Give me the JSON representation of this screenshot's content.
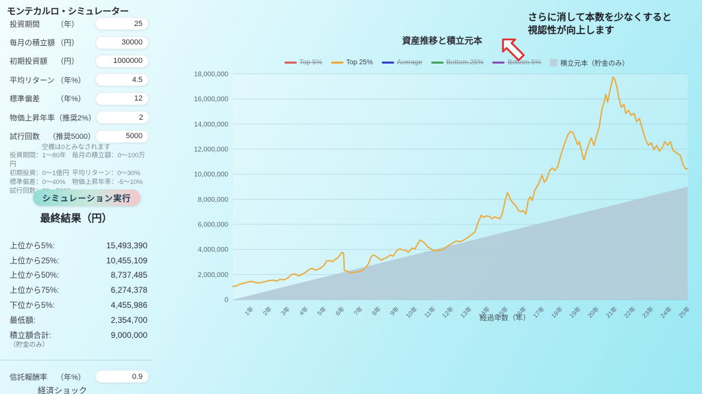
{
  "app": {
    "title": "モンテカルロ・シミュレーター"
  },
  "form": {
    "fields": [
      {
        "name": "投資期間",
        "unit": "（年）",
        "value": "25"
      },
      {
        "name": "毎月の積立額",
        "unit": "（円）",
        "value": "30000"
      },
      {
        "name": "初期投資額",
        "unit": "（円）",
        "value": "1000000"
      },
      {
        "name": "平均リターン",
        "unit": "（年%）",
        "value": "4.5"
      },
      {
        "name": "標準偏差",
        "unit": "（年%）",
        "value": "12"
      },
      {
        "name": "物価上昇年率",
        "unit": "（推奨2%）",
        "value": "2"
      },
      {
        "name": "試行回数",
        "unit": "（推奨5000）",
        "value": "5000"
      }
    ],
    "note": "空欄は0とみなされます",
    "hints": [
      [
        "投資期間：1～80年",
        "毎月の積立額：0～100万円"
      ],
      [
        "初期投資：0～1億円",
        "平均リターン：0～30%"
      ],
      [
        "標準偏差：0～40%",
        "物価上昇年率：-5～10%"
      ],
      [
        "試行回数：20～5000",
        ""
      ]
    ],
    "run_button": "シミュレーション実行"
  },
  "results": {
    "heading": "最終結果（円）",
    "rows": [
      {
        "label": "上位から5%:",
        "value": "15,493,390"
      },
      {
        "label": "上位から25%:",
        "value": "10,455,109"
      },
      {
        "label": "上位から50%:",
        "value": "8,737,485"
      },
      {
        "label": "上位から75%:",
        "value": "6,274,378"
      },
      {
        "label": "下位から5%:",
        "value": "4,455,986"
      },
      {
        "label": "最低額:",
        "value": "2,354,700"
      },
      {
        "label": "積立額合計:",
        "value": "9,000,000"
      }
    ],
    "note": "（貯金のみ）"
  },
  "fee": {
    "name": "信託報酬率",
    "unit": "（年%）",
    "value": "0.9"
  },
  "shock_label": "経済ショック",
  "annotation": {
    "line1": "さらに消して本数を少なくすると",
    "line2": "視認性が向上します",
    "arrow_color": "#e03131"
  },
  "chart_data": {
    "type": "line",
    "title": "資産推移と積立元本",
    "xlabel": "経過年数（年）",
    "ylim": [
      0,
      18000000
    ],
    "ytick_step": 2000000,
    "xticks": [
      "1年",
      "2年",
      "3年",
      "4年",
      "5年",
      "6年",
      "7年",
      "8年",
      "9年",
      "10年",
      "11年",
      "12年",
      "13年",
      "14年",
      "15年",
      "16年",
      "17年",
      "18年",
      "19年",
      "20年",
      "21年",
      "22年",
      "23年",
      "24年",
      "25年"
    ],
    "grid": "horizontal",
    "legend_position": "top",
    "legend": [
      {
        "label": "Top 5%",
        "color": "#d65f5f",
        "disabled": true,
        "swatch": "line"
      },
      {
        "label": "Top 25%",
        "color": "#ecaa3b",
        "disabled": false,
        "swatch": "line"
      },
      {
        "label": "Average",
        "color": "#3540cf",
        "disabled": true,
        "swatch": "line"
      },
      {
        "label": "Bottom 25%",
        "color": "#43a35c",
        "disabled": true,
        "swatch": "line"
      },
      {
        "label": "Bottom 5%",
        "color": "#8a4fb5",
        "disabled": true,
        "swatch": "line"
      },
      {
        "label": "積立元本（貯金のみ）",
        "color": "#bcd2de",
        "disabled": false,
        "swatch": "area"
      }
    ],
    "series": [
      {
        "name": "積立元本（貯金のみ）",
        "type": "area",
        "color": "#b2cbd7",
        "points_year_millions": [
          [
            0,
            0
          ],
          [
            25,
            9
          ]
        ]
      },
      {
        "name": "Top 25%",
        "type": "line",
        "color": "#ecaa3b",
        "points_year_millions": [
          [
            0,
            1.05
          ],
          [
            0.2,
            1.1
          ],
          [
            0.4,
            1.25
          ],
          [
            0.6,
            1.3
          ],
          [
            0.8,
            1.4
          ],
          [
            1.0,
            1.45
          ],
          [
            1.2,
            1.38
          ],
          [
            1.4,
            1.32
          ],
          [
            1.6,
            1.38
          ],
          [
            1.8,
            1.45
          ],
          [
            2.0,
            1.52
          ],
          [
            2.2,
            1.55
          ],
          [
            2.4,
            1.48
          ],
          [
            2.6,
            1.62
          ],
          [
            2.8,
            1.58
          ],
          [
            3.0,
            1.72
          ],
          [
            3.2,
            1.98
          ],
          [
            3.4,
            2.05
          ],
          [
            3.6,
            1.9
          ],
          [
            3.8,
            2.02
          ],
          [
            4.0,
            2.18
          ],
          [
            4.2,
            2.42
          ],
          [
            4.35,
            2.5
          ],
          [
            4.5,
            2.35
          ],
          [
            4.65,
            2.4
          ],
          [
            4.8,
            2.5
          ],
          [
            5.0,
            2.72
          ],
          [
            5.15,
            3.08
          ],
          [
            5.3,
            3.12
          ],
          [
            5.45,
            3.02
          ],
          [
            5.6,
            3.18
          ],
          [
            5.75,
            3.32
          ],
          [
            5.9,
            3.6
          ],
          [
            6.0,
            3.78
          ],
          [
            6.08,
            3.68
          ],
          [
            6.12,
            2.32
          ],
          [
            6.3,
            2.26
          ],
          [
            6.5,
            2.12
          ],
          [
            6.7,
            2.2
          ],
          [
            6.9,
            2.22
          ],
          [
            7.1,
            2.32
          ],
          [
            7.3,
            2.55
          ],
          [
            7.45,
            2.88
          ],
          [
            7.6,
            3.42
          ],
          [
            7.7,
            3.55
          ],
          [
            7.85,
            3.48
          ],
          [
            8.0,
            3.3
          ],
          [
            8.15,
            3.15
          ],
          [
            8.3,
            3.26
          ],
          [
            8.5,
            3.4
          ],
          [
            8.65,
            3.56
          ],
          [
            8.8,
            3.46
          ],
          [
            9.0,
            3.9
          ],
          [
            9.15,
            4.05
          ],
          [
            9.3,
            3.98
          ],
          [
            9.5,
            3.92
          ],
          [
            9.65,
            3.78
          ],
          [
            9.85,
            4.12
          ],
          [
            10.0,
            4.02
          ],
          [
            10.15,
            4.45
          ],
          [
            10.3,
            4.75
          ],
          [
            10.5,
            4.55
          ],
          [
            10.7,
            4.22
          ],
          [
            10.9,
            4.02
          ],
          [
            11.1,
            3.88
          ],
          [
            11.3,
            3.92
          ],
          [
            11.5,
            3.98
          ],
          [
            11.7,
            4.18
          ],
          [
            11.9,
            4.35
          ],
          [
            12.1,
            4.52
          ],
          [
            12.3,
            4.68
          ],
          [
            12.5,
            4.62
          ],
          [
            12.7,
            4.75
          ],
          [
            12.9,
            4.95
          ],
          [
            13.1,
            5.15
          ],
          [
            13.3,
            5.4
          ],
          [
            13.5,
            6.25
          ],
          [
            13.65,
            6.72
          ],
          [
            13.8,
            6.55
          ],
          [
            13.95,
            6.68
          ],
          [
            14.1,
            6.62
          ],
          [
            14.25,
            6.45
          ],
          [
            14.4,
            6.6
          ],
          [
            14.55,
            6.52
          ],
          [
            14.7,
            6.45
          ],
          [
            14.85,
            7.1
          ],
          [
            15.0,
            8.1
          ],
          [
            15.1,
            8.53
          ],
          [
            15.25,
            8.0
          ],
          [
            15.4,
            7.7
          ],
          [
            15.55,
            7.48
          ],
          [
            15.7,
            7.1
          ],
          [
            15.85,
            7.0
          ],
          [
            15.95,
            7.12
          ],
          [
            16.1,
            6.82
          ],
          [
            16.25,
            8.0
          ],
          [
            16.35,
            8.2
          ],
          [
            16.45,
            7.9
          ],
          [
            16.6,
            8.75
          ],
          [
            16.7,
            8.95
          ],
          [
            16.85,
            9.4
          ],
          [
            17.0,
            9.92
          ],
          [
            17.12,
            9.35
          ],
          [
            17.25,
            9.6
          ],
          [
            17.4,
            10.25
          ],
          [
            17.55,
            10.5
          ],
          [
            17.7,
            10.3
          ],
          [
            17.85,
            10.6
          ],
          [
            18.0,
            11.4
          ],
          [
            18.2,
            12.3
          ],
          [
            18.4,
            13.1
          ],
          [
            18.55,
            13.42
          ],
          [
            18.7,
            13.3
          ],
          [
            18.85,
            12.75
          ],
          [
            18.95,
            12.35
          ],
          [
            19.05,
            12.6
          ],
          [
            19.2,
            11.6
          ],
          [
            19.3,
            11.15
          ],
          [
            19.45,
            11.9
          ],
          [
            19.6,
            12.55
          ],
          [
            19.7,
            12.9
          ],
          [
            19.85,
            12.3
          ],
          [
            20.0,
            13.1
          ],
          [
            20.15,
            13.85
          ],
          [
            20.3,
            15.3
          ],
          [
            20.4,
            15.7
          ],
          [
            20.5,
            16.35
          ],
          [
            20.6,
            15.75
          ],
          [
            20.75,
            16.8
          ],
          [
            20.9,
            17.75
          ],
          [
            21.0,
            17.55
          ],
          [
            21.1,
            17.0
          ],
          [
            21.2,
            16.2
          ],
          [
            21.35,
            15.35
          ],
          [
            21.5,
            15.55
          ],
          [
            21.6,
            14.85
          ],
          [
            21.75,
            15.1
          ],
          [
            21.9,
            14.7
          ],
          [
            22.05,
            14.85
          ],
          [
            22.2,
            14.2
          ],
          [
            22.35,
            14.45
          ],
          [
            22.5,
            13.65
          ],
          [
            22.7,
            12.7
          ],
          [
            22.85,
            12.3
          ],
          [
            23.0,
            12.5
          ],
          [
            23.15,
            11.95
          ],
          [
            23.3,
            12.3
          ],
          [
            23.45,
            11.85
          ],
          [
            23.6,
            12.1
          ],
          [
            23.75,
            12.6
          ],
          [
            23.9,
            12.3
          ],
          [
            24.05,
            12.6
          ],
          [
            24.2,
            11.9
          ],
          [
            24.35,
            11.75
          ],
          [
            24.5,
            11.6
          ],
          [
            24.6,
            11.5
          ],
          [
            24.75,
            10.75
          ],
          [
            24.9,
            10.4
          ],
          [
            25,
            10.45
          ]
        ]
      }
    ]
  }
}
